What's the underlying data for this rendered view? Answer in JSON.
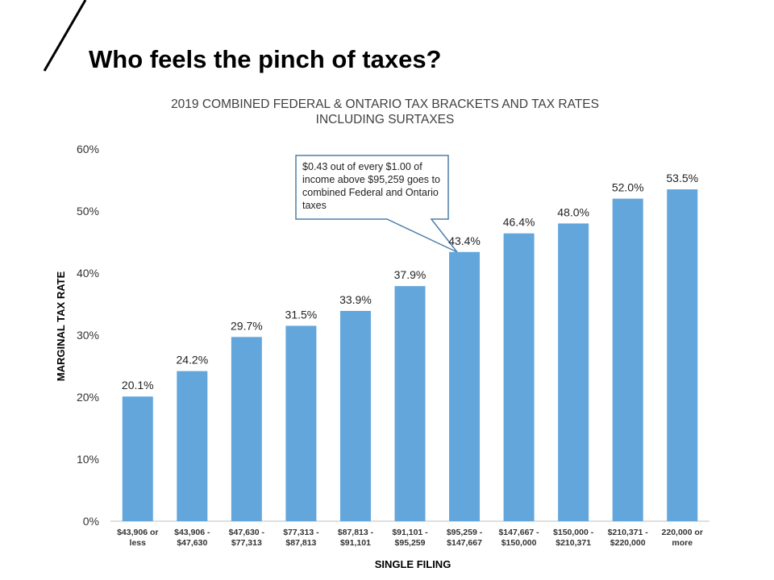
{
  "slide": {
    "title": "Who feels the pinch of taxes?"
  },
  "chart_data": {
    "type": "bar",
    "title": "2019 COMBINED FEDERAL & ONTARIO TAX BRACKETS AND TAX RATES INCLUDING SURTAXES",
    "x_label": "SINGLE FILING",
    "y_label": "MARGINAL TAX RATE",
    "categories": [
      "$43,906 or less",
      "$43,906 - $47,630",
      "$47,630 - $77,313",
      "$77,313 - $87,813",
      "$87,813 - $91,101",
      "$91,101 - $95,259",
      "$95,259 - $147,667",
      "$147,667 - $150,000",
      "$150,000 - $210,371",
      "$210,371 - $220,000",
      "220,000 or more"
    ],
    "values": [
      20.1,
      24.2,
      29.7,
      31.5,
      33.9,
      37.9,
      43.4,
      46.4,
      48.0,
      52.0,
      53.5
    ],
    "value_labels": [
      "20.1%",
      "24.2%",
      "29.7%",
      "31.5%",
      "33.9%",
      "37.9%",
      "43.4%",
      "46.4%",
      "48.0%",
      "52.0%",
      "53.5%"
    ],
    "color": "#62a6dc",
    "ylim": [
      0,
      60
    ],
    "yticks": [
      {
        "value": 0,
        "label": "0%"
      },
      {
        "value": 10,
        "label": "10%"
      },
      {
        "value": 20,
        "label": "20%"
      },
      {
        "value": 30,
        "label": "30%"
      },
      {
        "value": 40,
        "label": "40%"
      },
      {
        "value": 50,
        "label": "50%"
      },
      {
        "value": 60,
        "label": "60%"
      }
    ],
    "grid": false,
    "annotation": "$0.43 out of every $1.00 of income above $95,259 goes to combined Federal and Ontario taxes"
  }
}
